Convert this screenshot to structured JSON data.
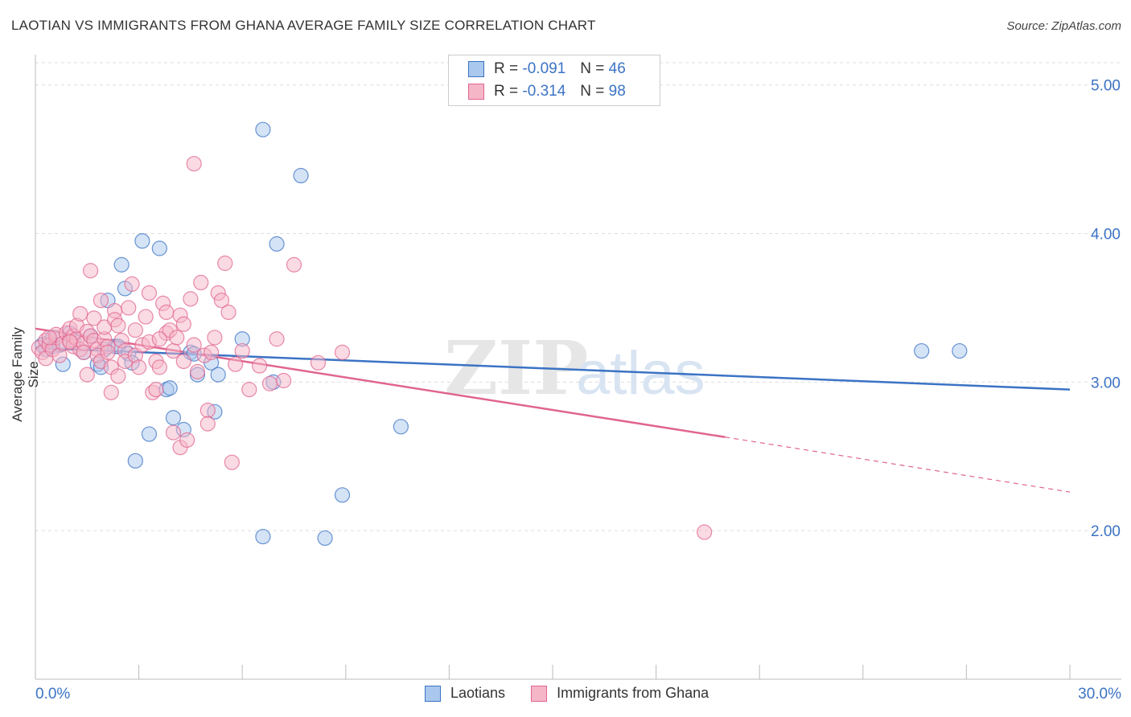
{
  "title": "LAOTIAN VS IMMIGRANTS FROM GHANA AVERAGE FAMILY SIZE CORRELATION CHART",
  "source": "Source: ZipAtlas.com",
  "watermark": {
    "part1": "ZIP",
    "part2": "atlas"
  },
  "colors": {
    "blue": "#3b73c4",
    "blue_fill": "#aac8ee",
    "pink": "#e0658f",
    "pink_fill": "#f5b6c8",
    "grid": "#dddddd"
  },
  "legend": {
    "rows": [
      {
        "r_label": "R =",
        "r_value": "-0.091",
        "n_label": "N =",
        "n_value": "46"
      },
      {
        "r_label": "R =",
        "r_value": "-0.314",
        "n_label": "N =",
        "n_value": "98"
      }
    ]
  },
  "bottom_legend": {
    "series1": "Laotians",
    "series2": "Immigrants from Ghana"
  },
  "chart_data": {
    "type": "scatter",
    "title": "LAOTIAN VS IMMIGRANTS FROM GHANA AVERAGE FAMILY SIZE CORRELATION CHART",
    "xlabel": "",
    "ylabel": "Average Family Size",
    "xlim": [
      0,
      30
    ],
    "ylim": [
      1.0,
      5.15
    ],
    "x_tick_labels": [
      "0.0%",
      "30.0%"
    ],
    "y_ticks": [
      2.0,
      3.0,
      4.0,
      5.0
    ],
    "y_tick_labels": [
      "2.00",
      "3.00",
      "4.00",
      "5.00"
    ],
    "grid": true,
    "series": [
      {
        "name": "Laotians",
        "color": "#3b73c4",
        "trend": {
          "x": [
            0,
            30
          ],
          "y": [
            3.23,
            2.95
          ]
        },
        "points": [
          [
            0.3,
            3.22
          ],
          [
            0.4,
            3.27
          ],
          [
            0.5,
            3.24
          ],
          [
            0.5,
            3.3
          ],
          [
            0.7,
            3.25
          ],
          [
            0.8,
            3.12
          ],
          [
            1.0,
            3.33
          ],
          [
            1.1,
            3.28
          ],
          [
            1.4,
            3.2
          ],
          [
            1.6,
            3.31
          ],
          [
            1.8,
            3.12
          ],
          [
            1.9,
            3.1
          ],
          [
            2.0,
            3.22
          ],
          [
            2.1,
            3.55
          ],
          [
            2.3,
            3.24
          ],
          [
            2.4,
            3.24
          ],
          [
            2.5,
            3.79
          ],
          [
            2.6,
            3.63
          ],
          [
            2.7,
            3.19
          ],
          [
            2.8,
            3.13
          ],
          [
            2.9,
            2.47
          ],
          [
            3.1,
            3.95
          ],
          [
            3.3,
            2.65
          ],
          [
            3.6,
            3.9
          ],
          [
            3.8,
            2.95
          ],
          [
            3.9,
            2.96
          ],
          [
            4.0,
            2.76
          ],
          [
            4.3,
            2.68
          ],
          [
            4.5,
            3.2
          ],
          [
            4.6,
            3.19
          ],
          [
            4.7,
            3.05
          ],
          [
            5.1,
            3.13
          ],
          [
            5.2,
            2.8
          ],
          [
            5.3,
            3.05
          ],
          [
            6.0,
            3.29
          ],
          [
            6.6,
            1.96
          ],
          [
            6.6,
            4.7
          ],
          [
            6.9,
            3.0
          ],
          [
            7.0,
            3.93
          ],
          [
            7.7,
            4.39
          ],
          [
            8.4,
            1.95
          ],
          [
            8.9,
            2.24
          ],
          [
            10.6,
            2.7
          ],
          [
            25.7,
            3.21
          ],
          [
            26.8,
            3.21
          ],
          [
            0.2,
            3.25
          ]
        ]
      },
      {
        "name": "Immigrants from Ghana",
        "color": "#e0658f",
        "trend": {
          "x": [
            0,
            20
          ],
          "y": [
            3.36,
            2.63
          ]
        },
        "trend_dashed": {
          "x": [
            20,
            30
          ],
          "y": [
            2.63,
            2.26
          ]
        },
        "points": [
          [
            0.1,
            3.23
          ],
          [
            0.2,
            3.2
          ],
          [
            0.3,
            3.28
          ],
          [
            0.3,
            3.16
          ],
          [
            0.4,
            3.25
          ],
          [
            0.5,
            3.22
          ],
          [
            0.6,
            3.3
          ],
          [
            0.6,
            3.32
          ],
          [
            0.7,
            3.18
          ],
          [
            0.8,
            3.26
          ],
          [
            0.9,
            3.33
          ],
          [
            1.0,
            3.28
          ],
          [
            1.0,
            3.36
          ],
          [
            1.1,
            3.24
          ],
          [
            1.1,
            3.31
          ],
          [
            1.2,
            3.29
          ],
          [
            1.2,
            3.38
          ],
          [
            1.3,
            3.46
          ],
          [
            1.3,
            3.22
          ],
          [
            1.4,
            3.26
          ],
          [
            1.4,
            3.2
          ],
          [
            1.5,
            3.34
          ],
          [
            1.5,
            3.05
          ],
          [
            1.6,
            3.75
          ],
          [
            1.6,
            3.31
          ],
          [
            1.7,
            3.43
          ],
          [
            1.7,
            3.28
          ],
          [
            1.8,
            3.22
          ],
          [
            1.8,
            3.18
          ],
          [
            1.9,
            3.14
          ],
          [
            1.9,
            3.55
          ],
          [
            2.0,
            3.29
          ],
          [
            2.0,
            3.37
          ],
          [
            2.1,
            3.24
          ],
          [
            2.1,
            3.2
          ],
          [
            2.2,
            3.1
          ],
          [
            2.2,
            2.93
          ],
          [
            2.3,
            3.48
          ],
          [
            2.3,
            3.42
          ],
          [
            2.4,
            3.38
          ],
          [
            2.5,
            3.28
          ],
          [
            2.6,
            3.21
          ],
          [
            2.6,
            3.14
          ],
          [
            2.7,
            3.5
          ],
          [
            2.8,
            3.66
          ],
          [
            2.9,
            3.35
          ],
          [
            2.9,
            3.18
          ],
          [
            3.0,
            3.1
          ],
          [
            3.1,
            3.25
          ],
          [
            3.2,
            3.44
          ],
          [
            3.3,
            3.6
          ],
          [
            3.3,
            3.27
          ],
          [
            3.4,
            2.93
          ],
          [
            3.5,
            3.14
          ],
          [
            3.5,
            2.95
          ],
          [
            3.6,
            3.1
          ],
          [
            3.7,
            3.53
          ],
          [
            3.8,
            3.47
          ],
          [
            3.8,
            3.33
          ],
          [
            3.9,
            3.35
          ],
          [
            4.0,
            2.66
          ],
          [
            4.0,
            3.21
          ],
          [
            4.1,
            3.3
          ],
          [
            4.2,
            2.56
          ],
          [
            4.2,
            3.45
          ],
          [
            4.3,
            3.39
          ],
          [
            4.3,
            3.14
          ],
          [
            4.4,
            2.61
          ],
          [
            4.5,
            3.56
          ],
          [
            4.6,
            3.25
          ],
          [
            4.6,
            4.47
          ],
          [
            4.7,
            3.07
          ],
          [
            4.8,
            3.67
          ],
          [
            4.9,
            3.18
          ],
          [
            5.0,
            2.81
          ],
          [
            5.0,
            2.72
          ],
          [
            5.1,
            3.2
          ],
          [
            5.2,
            3.3
          ],
          [
            5.3,
            3.6
          ],
          [
            5.4,
            3.55
          ],
          [
            5.5,
            3.8
          ],
          [
            5.6,
            3.47
          ],
          [
            5.7,
            2.46
          ],
          [
            5.8,
            3.12
          ],
          [
            6.0,
            3.21
          ],
          [
            6.2,
            2.95
          ],
          [
            6.5,
            3.11
          ],
          [
            6.8,
            2.99
          ],
          [
            7.0,
            3.29
          ],
          [
            7.2,
            3.01
          ],
          [
            7.5,
            3.79
          ],
          [
            8.2,
            3.13
          ],
          [
            8.9,
            3.2
          ],
          [
            19.4,
            1.99
          ],
          [
            0.4,
            3.3
          ],
          [
            2.4,
            3.04
          ],
          [
            3.6,
            3.29
          ],
          [
            1.0,
            3.27
          ]
        ]
      }
    ]
  }
}
